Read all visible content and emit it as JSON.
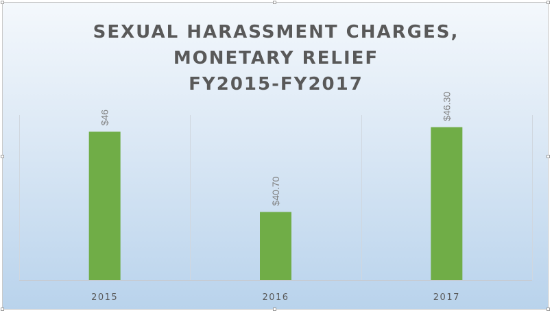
{
  "chart_data": {
    "type": "bar",
    "title": [
      "SEXUAL HARASSMENT CHARGES,",
      "MONETARY RELIEF",
      "FY2015-FY2017"
    ],
    "categories": [
      "2015",
      "2016",
      "2017"
    ],
    "values": [
      46,
      40.7,
      46.3
    ],
    "data_labels": [
      "$46",
      "$40.70",
      "$46.30"
    ],
    "ylim": [
      36.2,
      47.1
    ],
    "bar_color": "#70ad47",
    "grid": "vertical category separators",
    "legend": "none"
  }
}
